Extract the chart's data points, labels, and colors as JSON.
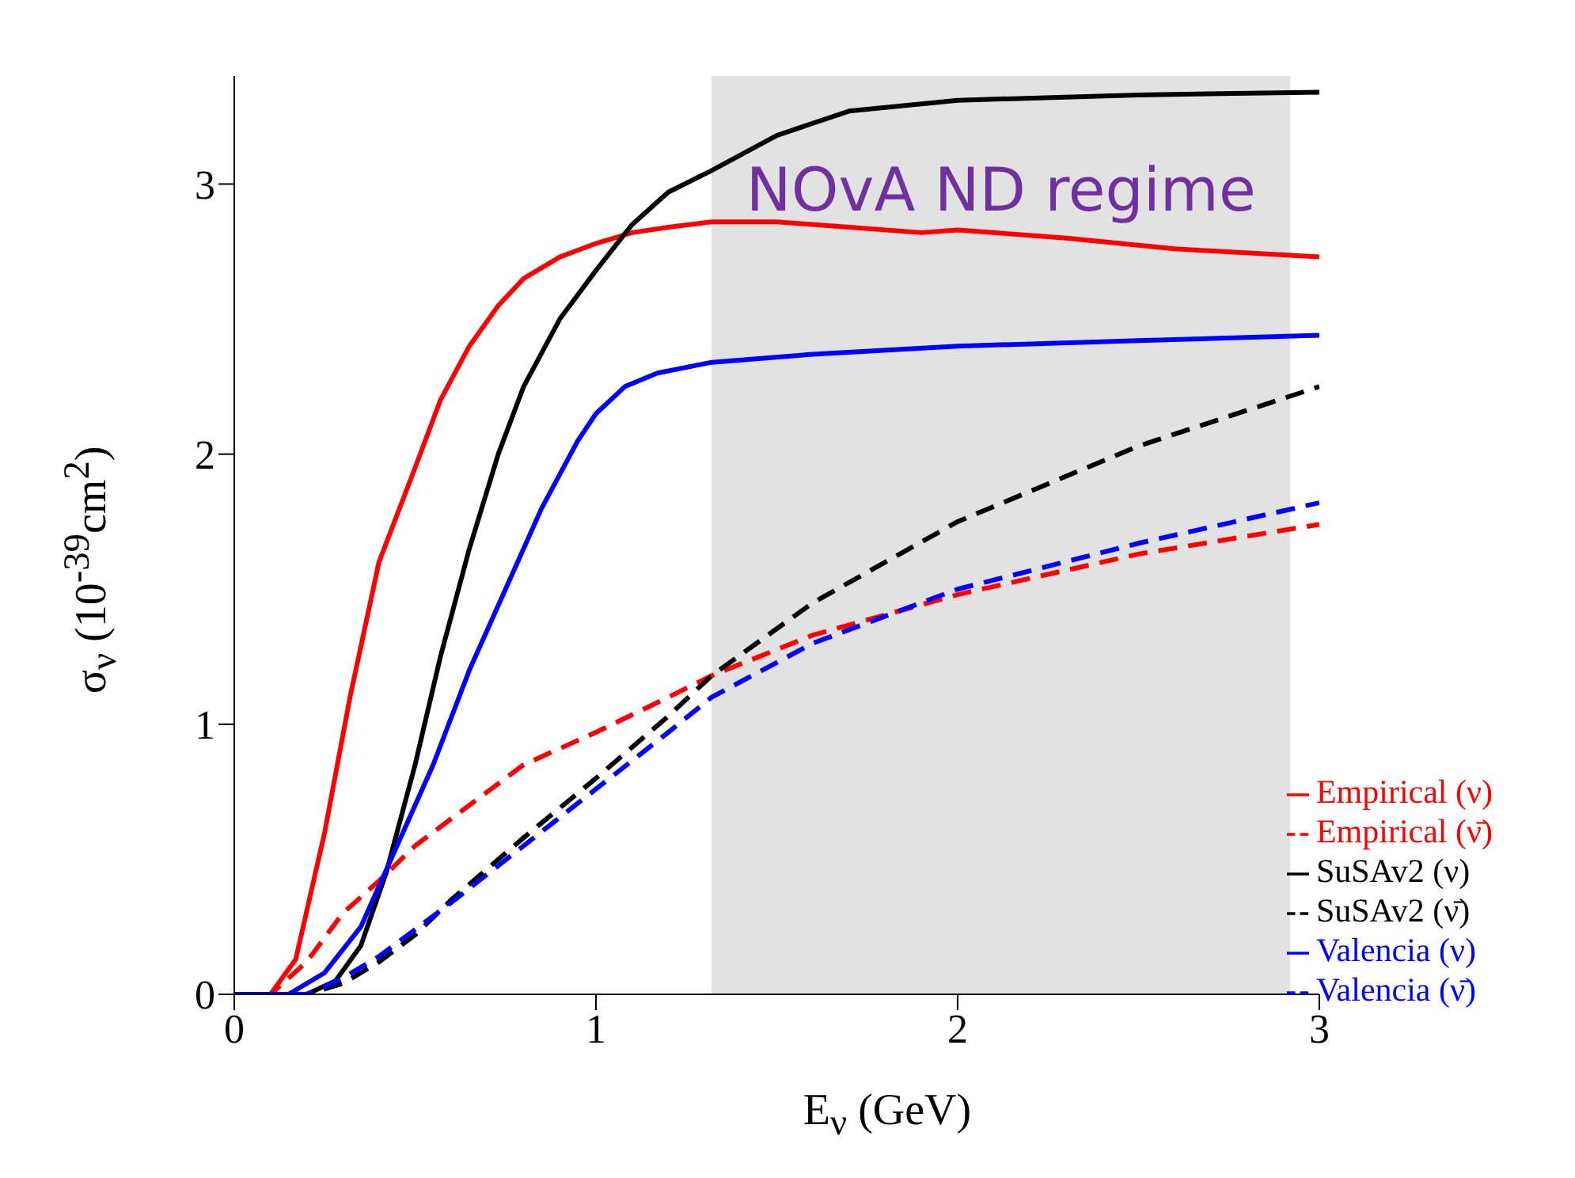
{
  "chart_data": {
    "type": "line",
    "xlabel": "E$_{ν}$ (GeV)",
    "ylabel": "σ$_{ν}$ (10$^{-39}$cm$^{2}$)",
    "xlim": [
      0,
      3
    ],
    "xticks": [
      0,
      1,
      2,
      3
    ],
    "ylim": [
      0,
      3.4
    ],
    "yticks": [
      0,
      1,
      2,
      3
    ],
    "grid": false,
    "legend": "bottom right",
    "marker": "none",
    "bands": [
      {
        "axis": "x",
        "from": 1.32,
        "to": 2.92,
        "label": "NOvA ND regime",
        "color": "#d3d3d3"
      }
    ],
    "series": [
      {
        "name": "Empirical (ν)",
        "color": "#ff0000",
        "line_style": "solid",
        "x": [
          0,
          0.1,
          0.17,
          0.25,
          0.32,
          0.4,
          0.5,
          0.57,
          0.65,
          0.73,
          0.8,
          0.9,
          1.0,
          1.1,
          1.2,
          1.32,
          1.5,
          1.7,
          1.9,
          2.0,
          2.3,
          2.6,
          3.0
        ],
        "values": [
          0,
          0,
          0.13,
          0.6,
          1.1,
          1.6,
          1.95,
          2.2,
          2.4,
          2.55,
          2.65,
          2.73,
          2.78,
          2.82,
          2.84,
          2.86,
          2.86,
          2.84,
          2.82,
          2.83,
          2.8,
          2.76,
          2.73
        ]
      },
      {
        "name": "Empirical (ν̄)",
        "color": "#ff0000",
        "line_style": "dashed",
        "x": [
          0,
          0.1,
          0.2,
          0.3,
          0.4,
          0.5,
          0.6,
          0.8,
          1.0,
          1.2,
          1.32,
          1.6,
          2.0,
          2.5,
          3.0
        ],
        "values": [
          0,
          0,
          0.12,
          0.3,
          0.42,
          0.55,
          0.65,
          0.85,
          0.97,
          1.1,
          1.18,
          1.33,
          1.48,
          1.63,
          1.74
        ]
      },
      {
        "name": "SuSAv2 (ν)",
        "color": "#000000",
        "line_style": "solid",
        "x": [
          0,
          0.2,
          0.28,
          0.35,
          0.42,
          0.5,
          0.57,
          0.65,
          0.73,
          0.8,
          0.9,
          1.0,
          1.1,
          1.2,
          1.32,
          1.5,
          1.7,
          2.0,
          2.5,
          3.0
        ],
        "values": [
          0,
          0,
          0.05,
          0.18,
          0.45,
          0.85,
          1.25,
          1.65,
          2.0,
          2.25,
          2.5,
          2.68,
          2.85,
          2.97,
          3.05,
          3.18,
          3.27,
          3.31,
          3.33,
          3.34
        ]
      },
      {
        "name": "SuSAv2 (ν̄)",
        "color": "#000000",
        "line_style": "dashed",
        "x": [
          0,
          0.2,
          0.3,
          0.4,
          0.5,
          0.6,
          0.8,
          1.0,
          1.2,
          1.32,
          1.6,
          2.0,
          2.5,
          3.0
        ],
        "values": [
          0,
          0,
          0.04,
          0.12,
          0.22,
          0.35,
          0.58,
          0.8,
          1.03,
          1.18,
          1.45,
          1.75,
          2.03,
          2.25
        ]
      },
      {
        "name": "Valencia (ν)",
        "color": "#0000ff",
        "line_style": "solid",
        "x": [
          0,
          0.15,
          0.25,
          0.35,
          0.45,
          0.55,
          0.65,
          0.75,
          0.85,
          0.95,
          1.0,
          1.08,
          1.17,
          1.32,
          1.6,
          2.0,
          2.5,
          3.0
        ],
        "values": [
          0,
          0,
          0.08,
          0.25,
          0.55,
          0.85,
          1.2,
          1.5,
          1.8,
          2.05,
          2.15,
          2.25,
          2.3,
          2.34,
          2.37,
          2.4,
          2.42,
          2.44
        ]
      },
      {
        "name": "Valencia (ν̄)",
        "color": "#0000ff",
        "line_style": "dashed",
        "x": [
          0,
          0.2,
          0.3,
          0.4,
          0.5,
          0.6,
          0.8,
          1.0,
          1.2,
          1.32,
          1.6,
          2.0,
          2.5,
          3.0
        ],
        "values": [
          0,
          0,
          0.06,
          0.14,
          0.24,
          0.34,
          0.55,
          0.76,
          0.97,
          1.1,
          1.3,
          1.5,
          1.67,
          1.82
        ]
      }
    ]
  }
}
